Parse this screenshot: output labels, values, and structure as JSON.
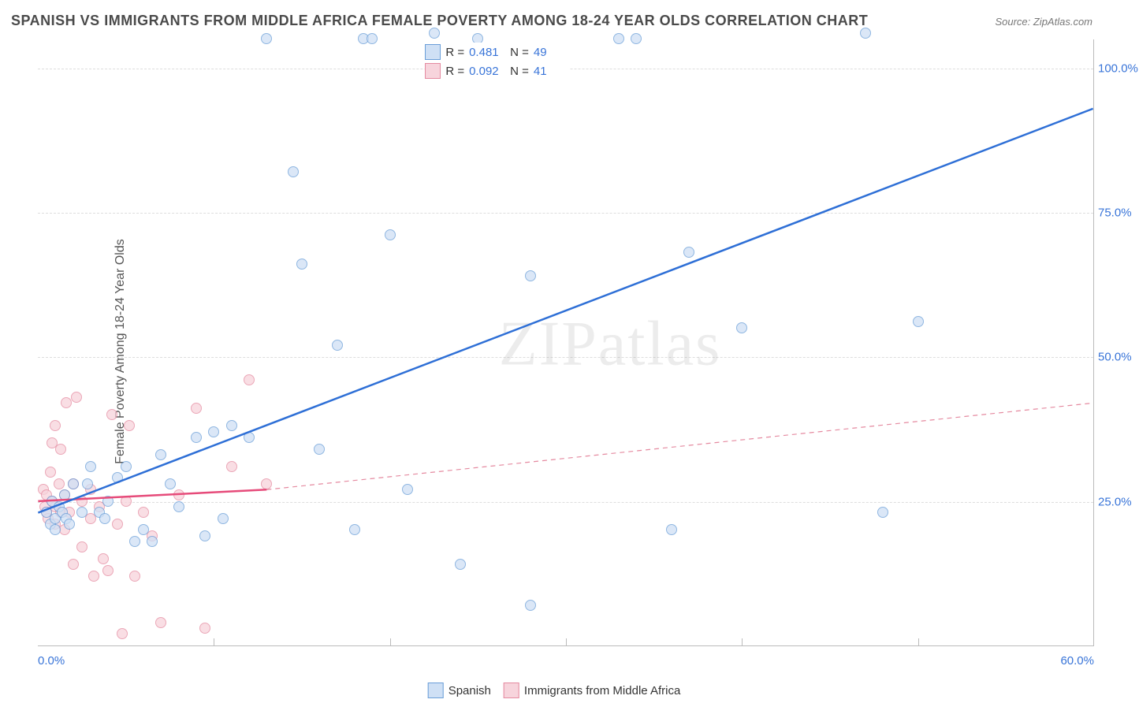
{
  "title": "SPANISH VS IMMIGRANTS FROM MIDDLE AFRICA FEMALE POVERTY AMONG 18-24 YEAR OLDS CORRELATION CHART",
  "source": "Source: ZipAtlas.com",
  "ylabel": "Female Poverty Among 18-24 Year Olds",
  "watermark": "ZIPatlas",
  "chart": {
    "type": "scatter",
    "background_color": "#ffffff",
    "grid_color": "#dddddd",
    "axis_color": "#bbbbbb",
    "xlim": [
      0,
      60
    ],
    "ylim": [
      0,
      105
    ],
    "xticks": [
      0,
      60
    ],
    "xtick_labels": [
      "0.0%",
      "60.0%"
    ],
    "xtick_minor": [
      10,
      20,
      30,
      40,
      50
    ],
    "yticks": [
      25,
      50,
      75,
      100
    ],
    "ytick_labels": [
      "25.0%",
      "50.0%",
      "75.0%",
      "100.0%"
    ],
    "dot_radius": 7,
    "dot_border_width": 1.2,
    "series": [
      {
        "name": "Spanish",
        "fill": "#cfe0f5",
        "stroke": "#6a9ed8",
        "fill_opacity": 0.75,
        "r_value": "0.481",
        "n_value": "49",
        "regression": {
          "x1": 0,
          "y1": 23,
          "x2": 60,
          "y2": 93,
          "color": "#2e6fd6",
          "width": 2.5,
          "dash": "none"
        },
        "points": [
          [
            0.5,
            23
          ],
          [
            0.7,
            21
          ],
          [
            0.8,
            25
          ],
          [
            1.0,
            22
          ],
          [
            1.0,
            20
          ],
          [
            1.2,
            24
          ],
          [
            1.4,
            23
          ],
          [
            1.5,
            26
          ],
          [
            1.6,
            22
          ],
          [
            1.8,
            21
          ],
          [
            2.0,
            28
          ],
          [
            2.5,
            23
          ],
          [
            2.8,
            28
          ],
          [
            3.0,
            31
          ],
          [
            3.5,
            23
          ],
          [
            3.8,
            22
          ],
          [
            4.0,
            25
          ],
          [
            4.5,
            29
          ],
          [
            5.0,
            31
          ],
          [
            5.5,
            18
          ],
          [
            6.0,
            20
          ],
          [
            6.5,
            18
          ],
          [
            7.0,
            33
          ],
          [
            7.5,
            28
          ],
          [
            8.0,
            24
          ],
          [
            9.0,
            36
          ],
          [
            9.5,
            19
          ],
          [
            10.0,
            37
          ],
          [
            10.5,
            22
          ],
          [
            11.0,
            38
          ],
          [
            12.0,
            36
          ],
          [
            13.0,
            105
          ],
          [
            14.5,
            82
          ],
          [
            15.0,
            66
          ],
          [
            16.0,
            34
          ],
          [
            17.0,
            52
          ],
          [
            18.0,
            20
          ],
          [
            18.5,
            105
          ],
          [
            19.0,
            105
          ],
          [
            20.0,
            71
          ],
          [
            21.0,
            27
          ],
          [
            22.5,
            106
          ],
          [
            24.0,
            14
          ],
          [
            25.0,
            105
          ],
          [
            28.0,
            64
          ],
          [
            28.0,
            7
          ],
          [
            33.0,
            105
          ],
          [
            34.0,
            105
          ],
          [
            36.0,
            20
          ],
          [
            37.0,
            68
          ],
          [
            40.0,
            55
          ],
          [
            47.0,
            106
          ],
          [
            48.0,
            23
          ],
          [
            50.0,
            56
          ]
        ]
      },
      {
        "name": "Immigrants from Middle Africa",
        "fill": "#f7d4dc",
        "stroke": "#e58aa0",
        "fill_opacity": 0.75,
        "r_value": "0.092",
        "n_value": "41",
        "regression_solid": {
          "x1": 0,
          "y1": 25,
          "x2": 13,
          "y2": 27,
          "color": "#e64b7a",
          "width": 2.5,
          "dash": "none"
        },
        "regression_dash": {
          "x1": 13,
          "y1": 27,
          "x2": 60,
          "y2": 42,
          "color": "#e58aa0",
          "width": 1.2,
          "dash": "6,5"
        },
        "points": [
          [
            0.3,
            27
          ],
          [
            0.4,
            24
          ],
          [
            0.5,
            26
          ],
          [
            0.5,
            23
          ],
          [
            0.6,
            22
          ],
          [
            0.7,
            30
          ],
          [
            0.8,
            25
          ],
          [
            0.8,
            35
          ],
          [
            1.0,
            24
          ],
          [
            1.0,
            21
          ],
          [
            1.0,
            38
          ],
          [
            1.2,
            28
          ],
          [
            1.3,
            23
          ],
          [
            1.3,
            34
          ],
          [
            1.5,
            26
          ],
          [
            1.5,
            20
          ],
          [
            1.6,
            42
          ],
          [
            1.8,
            23
          ],
          [
            2.0,
            14
          ],
          [
            2.0,
            28
          ],
          [
            2.2,
            43
          ],
          [
            2.5,
            25
          ],
          [
            2.5,
            17
          ],
          [
            3.0,
            27
          ],
          [
            3.0,
            22
          ],
          [
            3.2,
            12
          ],
          [
            3.5,
            24
          ],
          [
            3.7,
            15
          ],
          [
            4.0,
            13
          ],
          [
            4.2,
            40
          ],
          [
            4.5,
            21
          ],
          [
            4.8,
            2
          ],
          [
            5.0,
            25
          ],
          [
            5.2,
            38
          ],
          [
            5.5,
            12
          ],
          [
            6.0,
            23
          ],
          [
            6.5,
            19
          ],
          [
            7.0,
            4
          ],
          [
            8.0,
            26
          ],
          [
            9.0,
            41
          ],
          [
            9.5,
            3
          ],
          [
            11.0,
            31
          ],
          [
            12.0,
            46
          ],
          [
            13.0,
            28
          ]
        ]
      }
    ]
  },
  "legend_top": {
    "label_r": "R =",
    "label_n": "N ="
  },
  "legend_bottom": {
    "items": [
      "Spanish",
      "Immigrants from Middle Africa"
    ]
  }
}
